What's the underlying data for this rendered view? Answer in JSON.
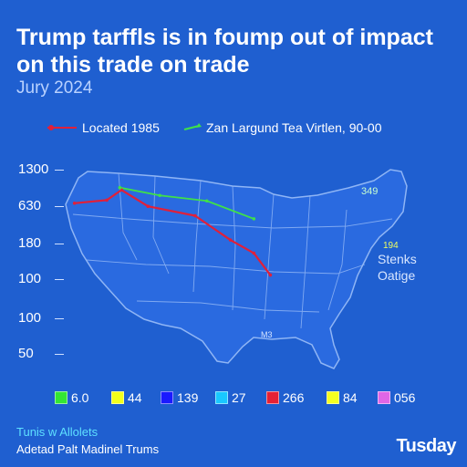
{
  "title": "Trump tarffls is in foump out of impact on this trade on trade",
  "subtitle": "Jury 2024",
  "brand": "Tusday",
  "footer": {
    "line1": "Tunis w Allolets",
    "line2": "Adetad Palt Madinel Trums"
  },
  "annotations": {
    "top_right": "349",
    "right_small": "194",
    "right_label_1": "Stenks",
    "right_label_2": "Oatige",
    "bottom_small": "M3"
  },
  "colors": {
    "background": "#1f5fd0",
    "map_fill": "#2a6ae0",
    "map_border": "#8fb5f5",
    "series_red": "#e0203a",
    "series_green": "#3fe04a"
  },
  "chart_data": {
    "type": "line",
    "title": "Trump tarffls is in foump out of impact on this trade on trade",
    "subtitle": "Jury 2024",
    "y_ticks": [
      "1300",
      "630",
      "180",
      "100",
      "100",
      "50"
    ],
    "legend_position": "top",
    "series": [
      {
        "name": "Located 1985",
        "color": "#e0203a",
        "points": [
          {
            "lon": -123.5,
            "lat": 45.2
          },
          {
            "lon": -118.0,
            "lat": 45.6
          },
          {
            "lon": -115.5,
            "lat": 46.9
          },
          {
            "lon": -111.0,
            "lat": 44.8
          },
          {
            "lon": -103.0,
            "lat": 43.6
          },
          {
            "lon": -97.0,
            "lat": 40.5
          },
          {
            "lon": -93.0,
            "lat": 38.8
          },
          {
            "lon": -90.2,
            "lat": 36.0
          }
        ]
      },
      {
        "name": "Zan Largund Tea Virtlen, 90-00",
        "color": "#3fe04a",
        "points": [
          {
            "lon": -115.8,
            "lat": 47.2
          },
          {
            "lon": -109.0,
            "lat": 46.2
          },
          {
            "lon": -101.0,
            "lat": 45.5
          },
          {
            "lon": -93.0,
            "lat": 43.2
          }
        ]
      }
    ],
    "key": [
      {
        "label": "6.0",
        "color": "#33e633"
      },
      {
        "label": "44",
        "color": "#f2ff1a"
      },
      {
        "label": "139",
        "color": "#1a1aff"
      },
      {
        "label": "27",
        "color": "#19c8ff"
      },
      {
        "label": "266",
        "color": "#e62035"
      },
      {
        "label": "84",
        "color": "#f5ff1f"
      },
      {
        "label": "056",
        "color": "#e066e6"
      }
    ]
  }
}
